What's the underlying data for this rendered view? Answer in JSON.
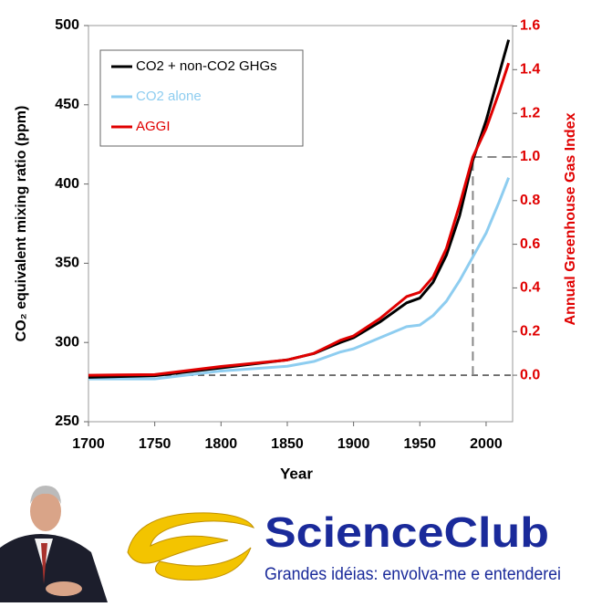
{
  "chart_data": {
    "type": "line",
    "x_label": "Year",
    "y_label": "CO₂ equivalent mixing ratio (ppm)",
    "y2_label": "Annual Greenhouse Gas Index",
    "x": [
      1700,
      1750,
      1800,
      1850,
      1870,
      1890,
      1900,
      1920,
      1940,
      1950,
      1960,
      1970,
      1980,
      1990,
      2000,
      2010,
      2017
    ],
    "series": [
      {
        "name": "CO2 + non-CO2 GHGs",
        "color": "#000000",
        "axis": "y",
        "values": [
          278,
          279,
          284,
          289,
          293,
          300,
          303,
          313,
          325,
          328,
          338,
          355,
          380,
          415,
          440,
          470,
          491
        ]
      },
      {
        "name": "CO2 alone",
        "color": "#8ecdf0",
        "axis": "y",
        "values": [
          277,
          277,
          282,
          285,
          288,
          294,
          296,
          303,
          310,
          311,
          317,
          326,
          339,
          354,
          369,
          389,
          404
        ]
      },
      {
        "name": "AGGI",
        "color": "#e00000",
        "axis": "y2",
        "values": [
          0,
          0.003,
          0.04,
          0.07,
          0.1,
          0.16,
          0.18,
          0.26,
          0.36,
          0.38,
          0.45,
          0.58,
          0.78,
          1.0,
          1.13,
          1.3,
          1.43
        ]
      }
    ],
    "xlim": [
      1700,
      2020
    ],
    "xticks": [
      1700,
      1750,
      1800,
      1850,
      1900,
      1950,
      2000
    ],
    "ylim": [
      250,
      500
    ],
    "yticks": [
      250,
      300,
      350,
      400,
      450,
      500
    ],
    "y2lim": [
      -0.213,
      1.602
    ],
    "y2ticks": [
      {
        "value": 0,
        "label": "0.0"
      },
      0.2,
      0.4,
      0.6,
      0.8,
      {
        "value": 1,
        "label": "1.0"
      },
      1.2,
      1.4,
      1.6
    ],
    "y2_color": "#e00000",
    "reference": {
      "x": 1990,
      "y2": 1,
      "baseline": 0
    },
    "legend": "upper left"
  },
  "branding": {
    "name": "ScienceClub",
    "tagline": "Grandes idéias: envolva-me e entenderei"
  }
}
